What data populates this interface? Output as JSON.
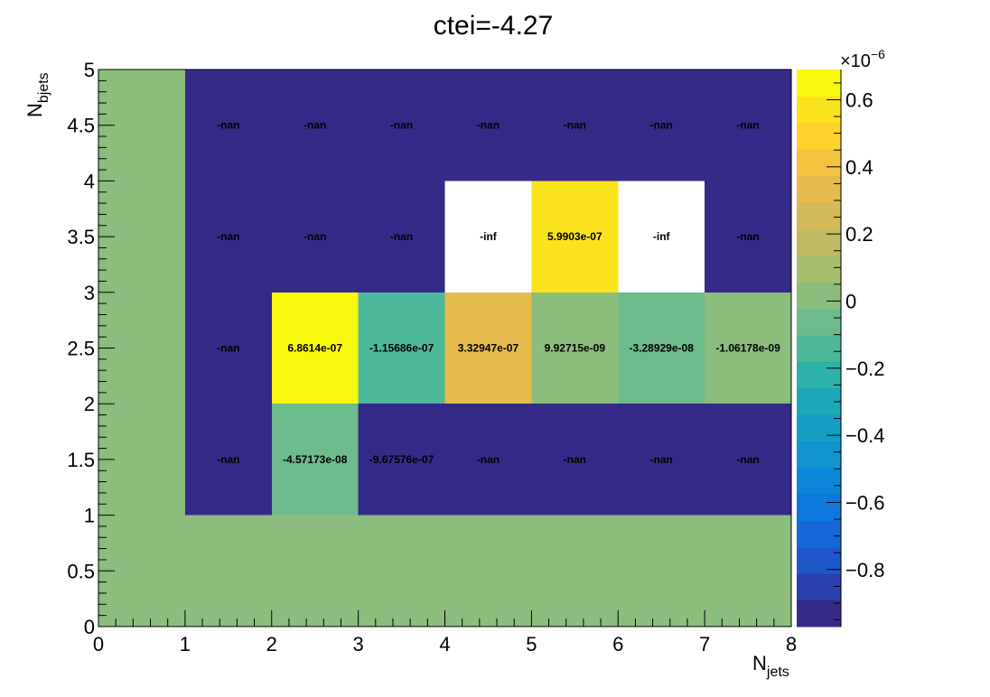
{
  "chart_data": {
    "type": "heatmap",
    "title": "ctei=-4.27",
    "xlabel": "N",
    "xlabel_sub": "jets",
    "ylabel": "N",
    "ylabel_sub": "bjets",
    "xlim": [
      0,
      8
    ],
    "ylim": [
      0,
      5
    ],
    "x_bin_edges": [
      0,
      1,
      2,
      3,
      4,
      5,
      6,
      7,
      8
    ],
    "y_bin_edges": [
      0,
      1,
      2,
      3,
      4,
      5
    ],
    "x_tick_labels": [
      "0",
      "1",
      "2",
      "3",
      "4",
      "5",
      "6",
      "7",
      "8"
    ],
    "y_tick_labels": [
      "0",
      "0.5",
      "1",
      "1.5",
      "2",
      "2.5",
      "3",
      "3.5",
      "4",
      "4.5",
      "5"
    ],
    "colorbar": {
      "min": -9.7e-07,
      "max": 6.9e-07,
      "multiplier_label": "×10",
      "multiplier_exponent": "−6",
      "ticks": [
        {
          "value": 6e-07,
          "label": "0.6"
        },
        {
          "value": 4e-07,
          "label": "0.4"
        },
        {
          "value": 2e-07,
          "label": "0.2"
        },
        {
          "value": 0,
          "label": "0"
        },
        {
          "value": -2e-07,
          "label": "−0.2"
        },
        {
          "value": -4e-07,
          "label": "−0.4"
        },
        {
          "value": -6e-07,
          "label": "−0.6"
        },
        {
          "value": -8e-07,
          "label": "−0.8"
        }
      ],
      "palette": [
        "#352a87",
        "#2a3fae",
        "#1f56c9",
        "#1668d8",
        "#0d78dc",
        "#0b87d7",
        "#1193cf",
        "#139fc4",
        "#1aa9b8",
        "#2fb2aa",
        "#4db89a",
        "#6dbb8b",
        "#8bbd7c",
        "#a6bd6f",
        "#c0bb63",
        "#d4ba58",
        "#e5bc4d",
        "#f3c33f",
        "#fbd12c",
        "#f9e31c",
        "#f9f90e"
      ]
    },
    "cells": [
      {
        "x": 0,
        "y": 0,
        "value": 0,
        "label": ""
      },
      {
        "x": 1,
        "y": 0,
        "value": 0,
        "label": ""
      },
      {
        "x": 2,
        "y": 0,
        "value": 0,
        "label": ""
      },
      {
        "x": 3,
        "y": 0,
        "value": 0,
        "label": ""
      },
      {
        "x": 4,
        "y": 0,
        "value": 0,
        "label": ""
      },
      {
        "x": 5,
        "y": 0,
        "value": 0,
        "label": ""
      },
      {
        "x": 6,
        "y": 0,
        "value": 0,
        "label": ""
      },
      {
        "x": 7,
        "y": 0,
        "value": 0,
        "label": ""
      },
      {
        "x": 0,
        "y": 1,
        "value": 0,
        "label": ""
      },
      {
        "x": 1,
        "y": 1,
        "value": "nan",
        "label": "-nan"
      },
      {
        "x": 2,
        "y": 1,
        "value": -4.57173e-08,
        "label": "-4.57173e-08"
      },
      {
        "x": 3,
        "y": 1,
        "value": -9.67576e-07,
        "label": "-9.67576e-07"
      },
      {
        "x": 4,
        "y": 1,
        "value": "nan",
        "label": "-nan"
      },
      {
        "x": 5,
        "y": 1,
        "value": "nan",
        "label": "-nan"
      },
      {
        "x": 6,
        "y": 1,
        "value": "nan",
        "label": "-nan"
      },
      {
        "x": 7,
        "y": 1,
        "value": "nan",
        "label": "-nan"
      },
      {
        "x": 0,
        "y": 2,
        "value": 0,
        "label": ""
      },
      {
        "x": 1,
        "y": 2,
        "value": "nan",
        "label": "-nan"
      },
      {
        "x": 2,
        "y": 2,
        "value": 6.8614e-07,
        "label": "6.8614e-07"
      },
      {
        "x": 3,
        "y": 2,
        "value": -1.15686e-07,
        "label": "-1.15686e-07"
      },
      {
        "x": 4,
        "y": 2,
        "value": 3.32947e-07,
        "label": "3.32947e-07"
      },
      {
        "x": 5,
        "y": 2,
        "value": 9.92715e-09,
        "label": "9.92715e-09"
      },
      {
        "x": 6,
        "y": 2,
        "value": -3.28929e-08,
        "label": "-3.28929e-08"
      },
      {
        "x": 7,
        "y": 2,
        "value": -1.06178e-09,
        "label": "-1.06178e-09"
      },
      {
        "x": 0,
        "y": 3,
        "value": 0,
        "label": ""
      },
      {
        "x": 1,
        "y": 3,
        "value": "nan",
        "label": "-nan"
      },
      {
        "x": 2,
        "y": 3,
        "value": "nan",
        "label": "-nan"
      },
      {
        "x": 3,
        "y": 3,
        "value": "nan",
        "label": "-nan"
      },
      {
        "x": 4,
        "y": 3,
        "value": "-inf",
        "label": "-inf"
      },
      {
        "x": 5,
        "y": 3,
        "value": 5.9903e-07,
        "label": "5.9903e-07"
      },
      {
        "x": 6,
        "y": 3,
        "value": "-inf",
        "label": "-inf"
      },
      {
        "x": 7,
        "y": 3,
        "value": "nan",
        "label": "-nan"
      },
      {
        "x": 0,
        "y": 4,
        "value": 0,
        "label": ""
      },
      {
        "x": 1,
        "y": 4,
        "value": "nan",
        "label": "-nan"
      },
      {
        "x": 2,
        "y": 4,
        "value": "nan",
        "label": "-nan"
      },
      {
        "x": 3,
        "y": 4,
        "value": "nan",
        "label": "-nan"
      },
      {
        "x": 4,
        "y": 4,
        "value": "nan",
        "label": "-nan"
      },
      {
        "x": 5,
        "y": 4,
        "value": "nan",
        "label": "-nan"
      },
      {
        "x": 6,
        "y": 4,
        "value": "nan",
        "label": "-nan"
      },
      {
        "x": 7,
        "y": 4,
        "value": "nan",
        "label": "-nan"
      }
    ],
    "colors": {
      "nan": "#352a87",
      "inf": "#ffffff",
      "zero": "#76bd82"
    }
  }
}
